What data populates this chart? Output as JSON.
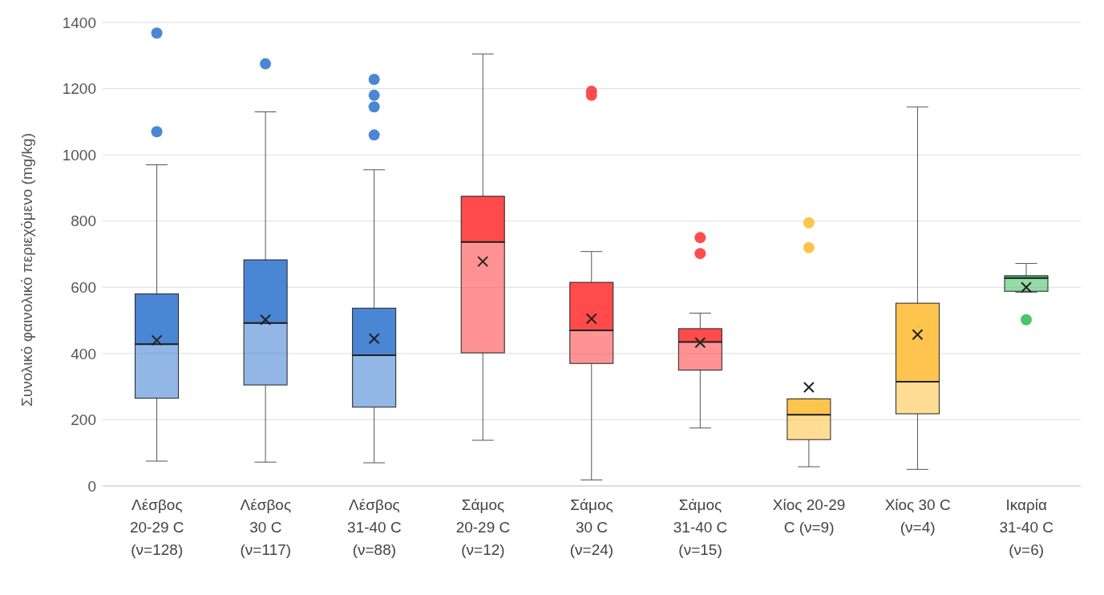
{
  "chart_data": {
    "type": "box",
    "ylabel": "Συνολικό φαινολικό περιεχόμενο (mg/kg)",
    "categories": [
      "Λέσβος\n20-29 C\n(ν=128)",
      "Λέσβος\n30 C\n(ν=117)",
      "Λέσβος\n31-40 C\n(ν=88)",
      "Σάμος\n20-29 C\n(ν=12)",
      "Σάμος\n30 C\n(ν=24)",
      "Σάμος\n31-40 C\n(ν=15)",
      "Χίος 20-29\nC (ν=9)",
      "Χίος 30 C\n(ν=4)",
      "Ικαρία\n31-40 C\n(ν=6)"
    ],
    "colors": [
      "#4a86d4",
      "#4a86d4",
      "#4a86d4",
      "#ff4b4b",
      "#ff4b4b",
      "#ff4b4b",
      "#ffc44d",
      "#ffc44d",
      "#4cc46a"
    ],
    "boxes": [
      {
        "low": 75,
        "q1": 265,
        "median": 428,
        "q3": 580,
        "high": 970,
        "mean": 440,
        "outliers": [
          1070,
          1368
        ]
      },
      {
        "low": 72,
        "q1": 305,
        "median": 492,
        "q3": 683,
        "high": 1130,
        "mean": 502,
        "outliers": [
          1275
        ]
      },
      {
        "low": 70,
        "q1": 238,
        "median": 395,
        "q3": 537,
        "high": 955,
        "mean": 445,
        "outliers": [
          1060,
          1145,
          1180,
          1228
        ]
      },
      {
        "low": 138,
        "q1": 402,
        "median": 737,
        "q3": 875,
        "high": 1305,
        "mean": 678
      },
      {
        "low": 18,
        "q1": 370,
        "median": 470,
        "q3": 615,
        "high": 708,
        "mean": 505,
        "outliers": [
          1180,
          1192
        ]
      },
      {
        "low": 175,
        "q1": 350,
        "median": 435,
        "q3": 475,
        "high": 522,
        "mean": 433,
        "outliers": [
          702,
          750
        ]
      },
      {
        "low": 58,
        "q1": 140,
        "median": 215,
        "q3": 263,
        "high": 263,
        "mean": 298,
        "outliers": [
          720,
          795
        ]
      },
      {
        "low": 50,
        "q1": 218,
        "median": 315,
        "q3": 552,
        "high": 1145,
        "mean": 457
      },
      {
        "low": 585,
        "q1": 588,
        "median": 628,
        "q3": 635,
        "high": 672,
        "mean": 600,
        "outliers": [
          502
        ]
      }
    ],
    "ylim": [
      0,
      1400
    ],
    "yticks": [
      0,
      200,
      400,
      600,
      800,
      1000,
      1200,
      1400
    ],
    "grid": "y"
  }
}
